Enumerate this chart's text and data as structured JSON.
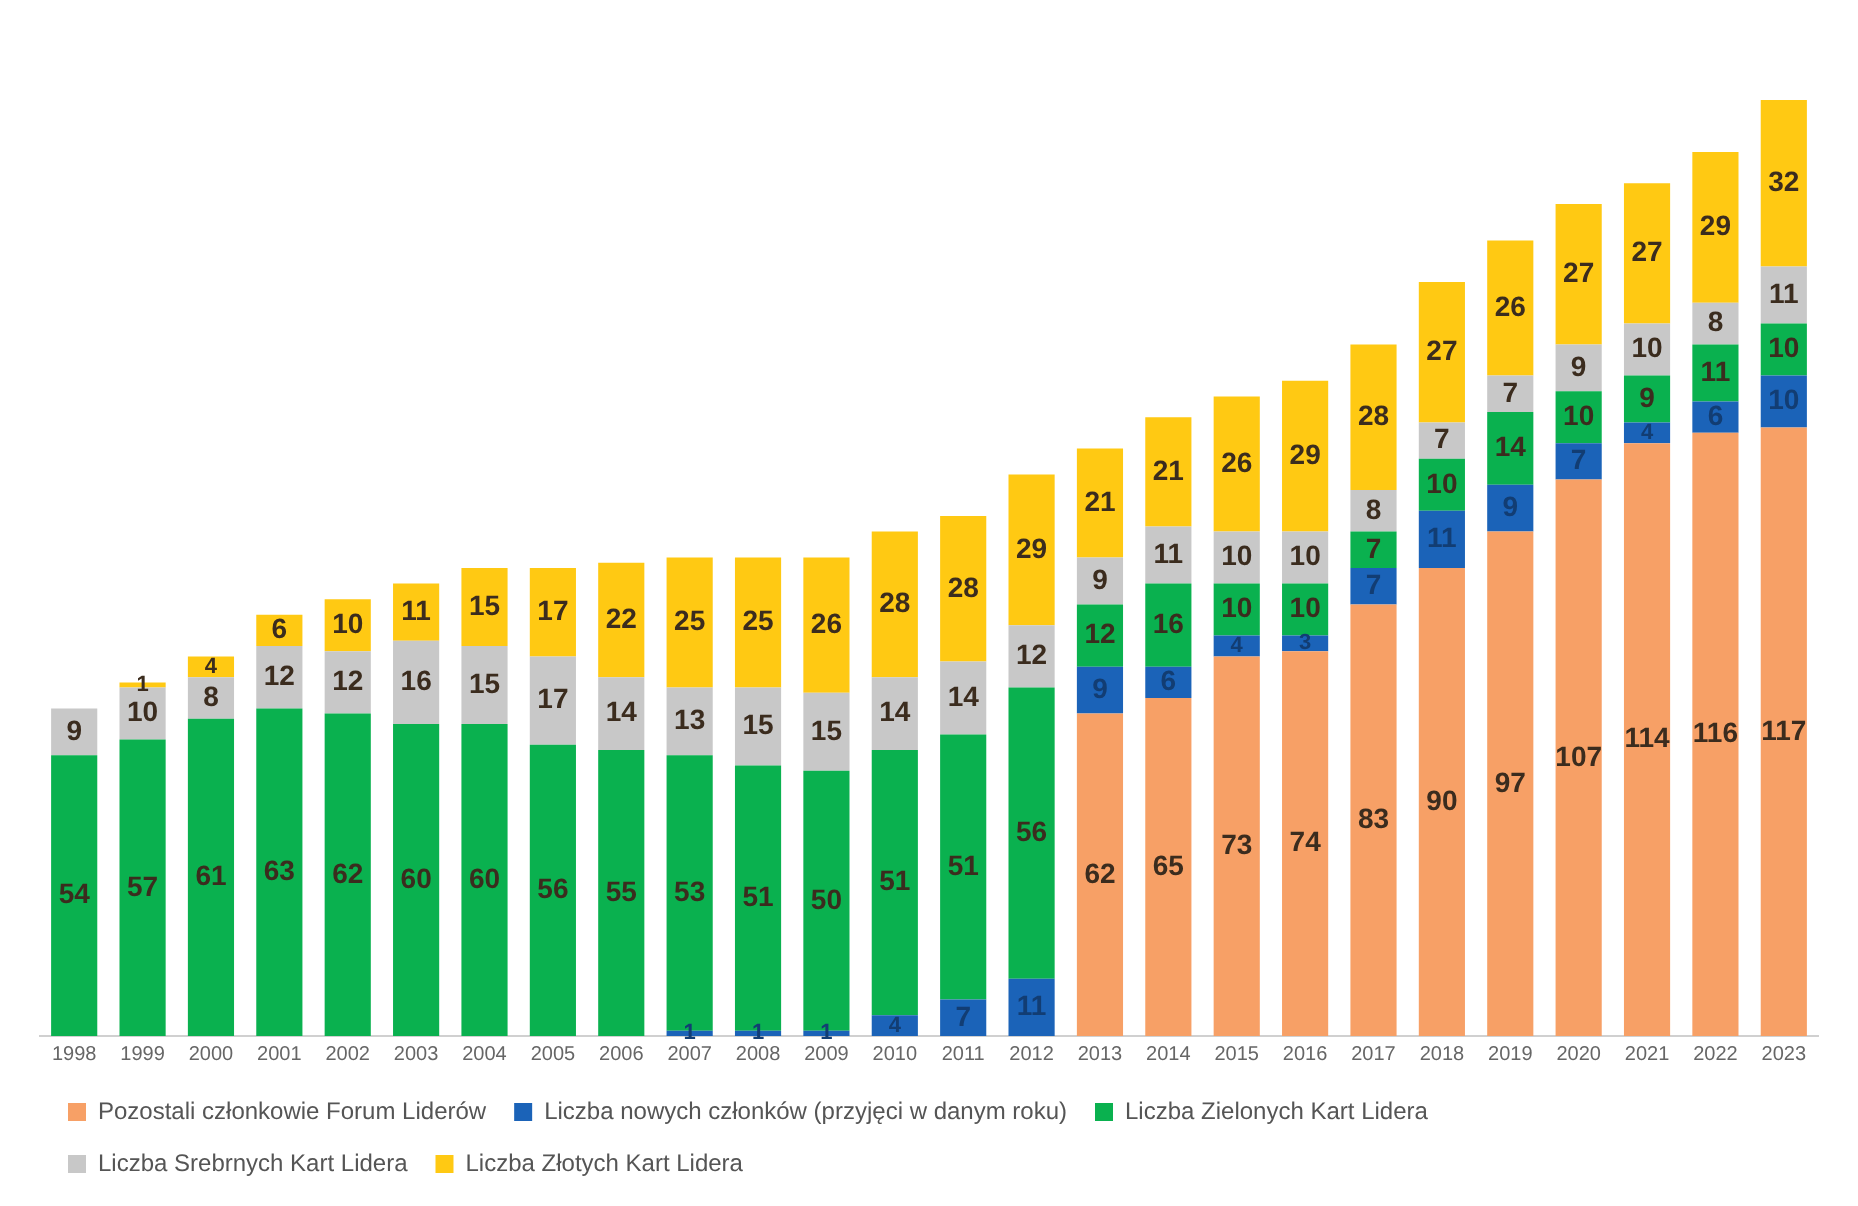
{
  "chart_data": {
    "type": "bar",
    "stacked": true,
    "data_labels": true,
    "legend": "bottom",
    "grid": false,
    "tick_labels": "x",
    "categories": [
      "1998",
      "1999",
      "2000",
      "2001",
      "2002",
      "2003",
      "2004",
      "2005",
      "2006",
      "2007",
      "2008",
      "2009",
      "2010",
      "2011",
      "2012",
      "2013",
      "2014",
      "2015",
      "2016",
      "2017",
      "2018",
      "2019",
      "2020",
      "2021",
      "2022",
      "2023"
    ],
    "series": [
      {
        "name": "Pozostali członkowie Forum Liderów",
        "color": "#f7a066",
        "values": [
          null,
          null,
          null,
          null,
          null,
          null,
          null,
          null,
          null,
          null,
          null,
          null,
          null,
          null,
          null,
          62,
          65,
          73,
          74,
          83,
          90,
          97,
          107,
          114,
          116,
          117
        ]
      },
      {
        "name": "Liczba nowych członków (przyjęci w danym roku)",
        "color": "#1b63b8",
        "values": [
          null,
          null,
          null,
          null,
          null,
          null,
          null,
          null,
          null,
          1,
          1,
          1,
          4,
          7,
          11,
          9,
          6,
          4,
          3,
          7,
          11,
          9,
          7,
          4,
          6,
          10
        ]
      },
      {
        "name": "Liczba Zielonych Kart Lidera",
        "color": "#0ab14f",
        "values": [
          54,
          57,
          61,
          63,
          62,
          60,
          60,
          56,
          55,
          53,
          51,
          50,
          51,
          51,
          56,
          12,
          16,
          10,
          10,
          7,
          10,
          14,
          10,
          9,
          11,
          10
        ]
      },
      {
        "name": "Liczba Srebrnych Kart Lidera",
        "color": "#c8c8c8",
        "values": [
          9,
          10,
          8,
          12,
          12,
          16,
          15,
          17,
          14,
          13,
          15,
          15,
          14,
          14,
          12,
          9,
          11,
          10,
          10,
          8,
          7,
          7,
          9,
          10,
          8,
          11
        ]
      },
      {
        "name": "Liczba Złotych Kart Lidera",
        "color": "#ffc913",
        "values": [
          null,
          1,
          4,
          6,
          10,
          11,
          15,
          17,
          22,
          25,
          25,
          26,
          28,
          28,
          29,
          21,
          21,
          26,
          29,
          28,
          27,
          26,
          27,
          27,
          29,
          32
        ]
      }
    ]
  }
}
